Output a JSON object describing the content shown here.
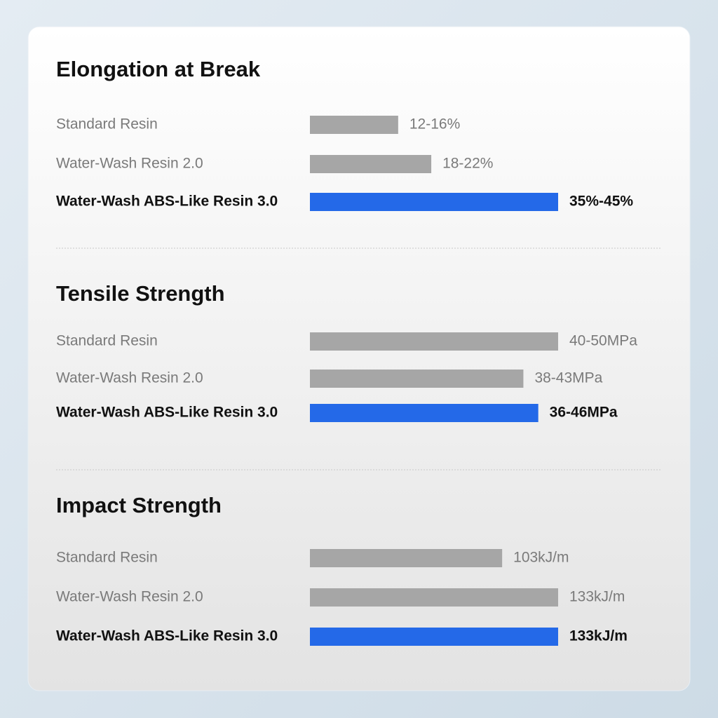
{
  "chart_data": [
    {
      "type": "hbar",
      "title": "Elongation at Break",
      "categories": [
        "Standard Resin",
        "Water-Wash Resin 2.0",
        "Water-Wash ABS-Like Resin 3.0"
      ],
      "values": [
        [
          12,
          16
        ],
        [
          18,
          22
        ],
        [
          35,
          45
        ]
      ],
      "value_labels": [
        "12-16%",
        "18-22%",
        "35%-45%"
      ],
      "colors": [
        "#a6a6a6",
        "#a6a6a6",
        "#2469e8"
      ]
    },
    {
      "type": "hbar",
      "title": "Tensile Strength",
      "categories": [
        "Standard Resin",
        "Water-Wash Resin 2.0",
        "Water-Wash ABS-Like Resin 3.0"
      ],
      "values": [
        [
          40,
          50
        ],
        [
          38,
          43
        ],
        [
          36,
          46
        ]
      ],
      "value_labels": [
        "40-50MPa",
        "38-43MPa",
        "36-46MPa"
      ],
      "colors": [
        "#a6a6a6",
        "#a6a6a6",
        "#2469e8"
      ]
    },
    {
      "type": "hbar",
      "title": "Impact Strength",
      "categories": [
        "Standard Resin",
        "Water-Wash Resin 2.0",
        "Water-Wash ABS-Like Resin 3.0"
      ],
      "values": [
        103,
        133,
        133
      ],
      "value_labels": [
        "103kJ/m",
        "133kJ/m",
        "133kJ/m"
      ],
      "colors": [
        "#a6a6a6",
        "#a6a6a6",
        "#2469e8"
      ]
    }
  ]
}
